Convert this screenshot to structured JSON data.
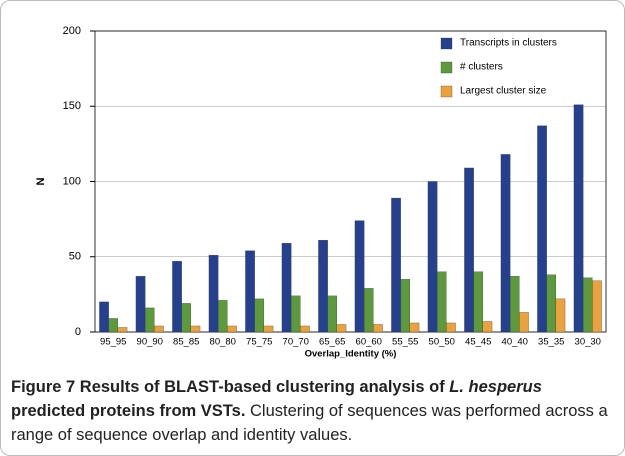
{
  "chart_data": {
    "type": "bar",
    "categories": [
      "95_95",
      "90_90",
      "85_85",
      "80_80",
      "75_75",
      "70_70",
      "65_65",
      "60_60",
      "55_55",
      "50_50",
      "45_45",
      "40_40",
      "35_35",
      "30_30"
    ],
    "series": [
      {
        "name": "Transcripts in clusters",
        "color": "#24408e",
        "values": [
          20,
          37,
          47,
          51,
          54,
          59,
          61,
          74,
          89,
          100,
          109,
          118,
          137,
          151
        ]
      },
      {
        "name": "# clusters",
        "color": "#5c9a3c",
        "values": [
          9,
          16,
          19,
          21,
          22,
          24,
          24,
          29,
          35,
          40,
          40,
          37,
          38,
          36
        ]
      },
      {
        "name": "Largest cluster size",
        "color": "#eba23c",
        "values": [
          3,
          4,
          4,
          4,
          4,
          4,
          5,
          5,
          6,
          6,
          7,
          13,
          22,
          34
        ]
      }
    ],
    "ylabel": "N",
    "xlabel": "Overlap_Identity (%)",
    "ylim": [
      0,
      200
    ],
    "yticks": [
      0,
      50,
      100,
      150,
      200
    ],
    "grid": true,
    "legend": "top-right"
  },
  "caption": {
    "label": "Figure 7",
    "title_before": "Results of BLAST-based clustering analysis of ",
    "title_italic": "L. hesperus",
    "title_after": " predicted proteins from VSTs.",
    "text": "Clustering of sequences was performed across a range of sequence overlap and identity values."
  }
}
